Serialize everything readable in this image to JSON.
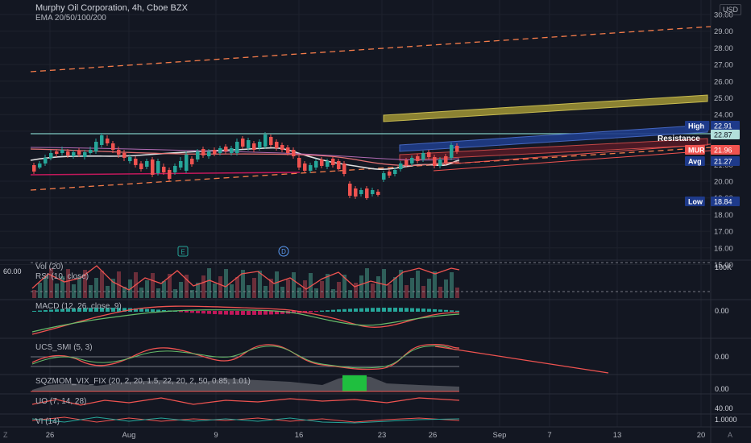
{
  "header": {
    "title": "Murphy Oil Corporation, 4h, Cboe BZX",
    "ema": "EMA 20/50/100/200",
    "currency": "USD"
  },
  "price_axis": [
    "30.00",
    "29.00",
    "28.00",
    "27.00",
    "26.00",
    "25.00",
    "24.00",
    "23.00",
    "22.00",
    "21.00",
    "20.00",
    "19.00",
    "18.00",
    "17.00",
    "16.00",
    "15.00"
  ],
  "price_tags": {
    "high": {
      "name": "High",
      "value": "22.91",
      "color": "#1e3a8a"
    },
    "last_close": {
      "value": "22.87",
      "color": "#b2dfdb"
    },
    "resistance": "Resistance",
    "mur": {
      "name": "MUR",
      "value": "21.96",
      "color": "#ef5350"
    },
    "avg": {
      "name": "Avg",
      "value": "21.27",
      "color": "#1e3a8a"
    },
    "low": {
      "name": "Low",
      "value": "18.84",
      "color": "#1e3a8a"
    }
  },
  "events": {
    "earnings": "E",
    "dividend": "D"
  },
  "indicators": {
    "left_value": "60.00",
    "vol": "Vol (20)",
    "vol_axis": "100K",
    "rsi": "RSI (10, close)",
    "macd": "MACD (12, 26, close, 9)",
    "macd_axis": "0.00",
    "ucs": "UCS_SMI (5, 3)",
    "ucs_axis": "0.00",
    "sqz": "SQZMOM_VIX_FIX (20, 2, 20, 1.5, 22, 20, 2, 50, 0.85, 1.01)",
    "sqz_axis": "0.00",
    "uo": "UO (7, 14, 28)",
    "uo_axis": "40.00",
    "vi": "VI (14)",
    "vi_axis": "1.0000"
  },
  "time_axis": [
    "26",
    "Aug",
    "9",
    "16",
    "23",
    "26",
    "Sep",
    "7",
    "13",
    "20"
  ],
  "corner_icons": {
    "left": "Z",
    "right": "A"
  },
  "colors": {
    "up": "#26a69a",
    "down": "#ef5350",
    "bg": "#131722"
  }
}
